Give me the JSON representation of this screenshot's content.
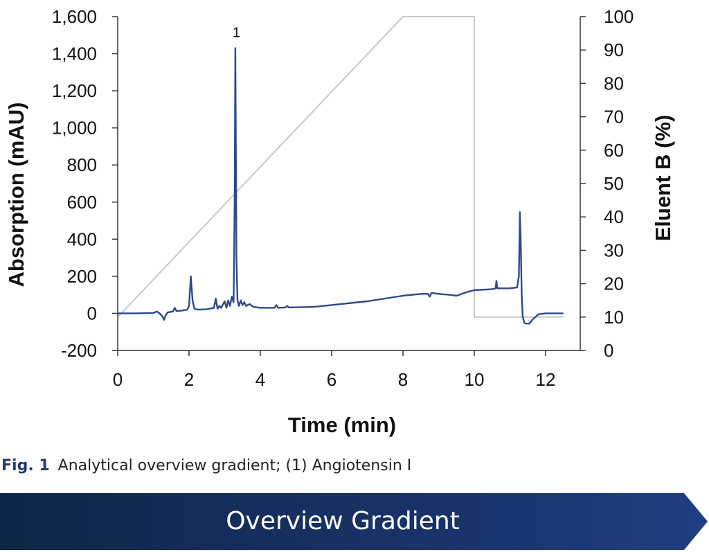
{
  "chart_data": {
    "type": "line",
    "xlabel": "Time (min)",
    "ylabel": "Absorption (mAU)",
    "y2label": "Eluent B (%)",
    "xlim": [
      0,
      13
    ],
    "ylim": [
      -200,
      1600
    ],
    "y2lim": [
      0,
      100
    ],
    "x_ticks": [
      0,
      2,
      4,
      6,
      8,
      10,
      12
    ],
    "y_ticks": [
      -200,
      0,
      200,
      400,
      600,
      800,
      1000,
      1200,
      1400,
      1600
    ],
    "x_tick_labels": [
      "0",
      "2",
      "4",
      "6",
      "8",
      "10",
      "12"
    ],
    "y_tick_labels": [
      "-200",
      "0",
      "200",
      "400",
      "600",
      "800",
      "1,000",
      "1,200",
      "1,400",
      "1,600"
    ],
    "y2_ticks": [
      0,
      10,
      20,
      30,
      40,
      50,
      60,
      70,
      80,
      90,
      100
    ],
    "y2_tick_labels": [
      "0",
      "10",
      "20",
      "30",
      "40",
      "50",
      "60",
      "70",
      "80",
      "90",
      "100"
    ],
    "grid": false,
    "series": [
      {
        "axis": "left",
        "color": "#2b4a8b",
        "x": [
          0,
          0.5,
          1.0,
          1.1,
          1.15,
          1.2,
          1.25,
          1.3,
          1.35,
          1.4,
          1.55,
          1.6,
          1.65,
          1.8,
          1.95,
          2.0,
          2.05,
          2.1,
          2.15,
          2.25,
          2.5,
          2.7,
          2.75,
          2.8,
          2.85,
          2.9,
          3.0,
          3.05,
          3.1,
          3.15,
          3.2,
          3.25,
          3.28,
          3.3,
          3.33,
          3.36,
          3.4,
          3.45,
          3.5,
          3.55,
          3.6,
          3.7,
          3.8,
          4.0,
          4.4,
          4.45,
          4.5,
          4.7,
          4.75,
          4.8,
          5.5,
          6.0,
          7.0,
          8.0,
          8.5,
          8.7,
          8.75,
          8.8,
          9.0,
          9.3,
          9.5,
          9.8,
          10.0,
          10.5,
          10.6,
          10.62,
          10.65,
          11.0,
          11.2,
          11.25,
          11.28,
          11.3,
          11.33,
          11.36,
          11.4,
          11.45,
          11.55,
          11.65,
          11.8,
          12.0,
          12.5
        ],
        "y": [
          0,
          0,
          2,
          10,
          3,
          -5,
          -15,
          -35,
          -10,
          5,
          10,
          30,
          12,
          15,
          20,
          40,
          200,
          70,
          25,
          20,
          22,
          30,
          80,
          25,
          40,
          30,
          65,
          30,
          70,
          40,
          90,
          60,
          600,
          1430,
          300,
          70,
          40,
          70,
          45,
          60,
          40,
          50,
          35,
          30,
          30,
          45,
          30,
          32,
          40,
          32,
          35,
          45,
          65,
          95,
          105,
          105,
          90,
          110,
          105,
          100,
          95,
          115,
          125,
          130,
          135,
          175,
          135,
          135,
          140,
          200,
          545,
          400,
          100,
          -20,
          -50,
          -55,
          -55,
          -30,
          -5,
          0,
          0
        ]
      },
      {
        "axis": "right",
        "color": "#c8c8c8",
        "x": [
          0,
          8.0,
          10.0,
          10.0,
          12.5
        ],
        "y": [
          10,
          100,
          100,
          10,
          10
        ]
      }
    ],
    "annotations": [
      {
        "text": "1",
        "x": 3.33,
        "y": 1430
      }
    ]
  },
  "caption": {
    "fig_label": "Fig. 1",
    "text": "Analytical overview gradient; (1) Angiotensin I"
  },
  "banner": {
    "title": "Overview Gradient",
    "color_start": "#0f2547",
    "color_end": "#1f3d80"
  }
}
